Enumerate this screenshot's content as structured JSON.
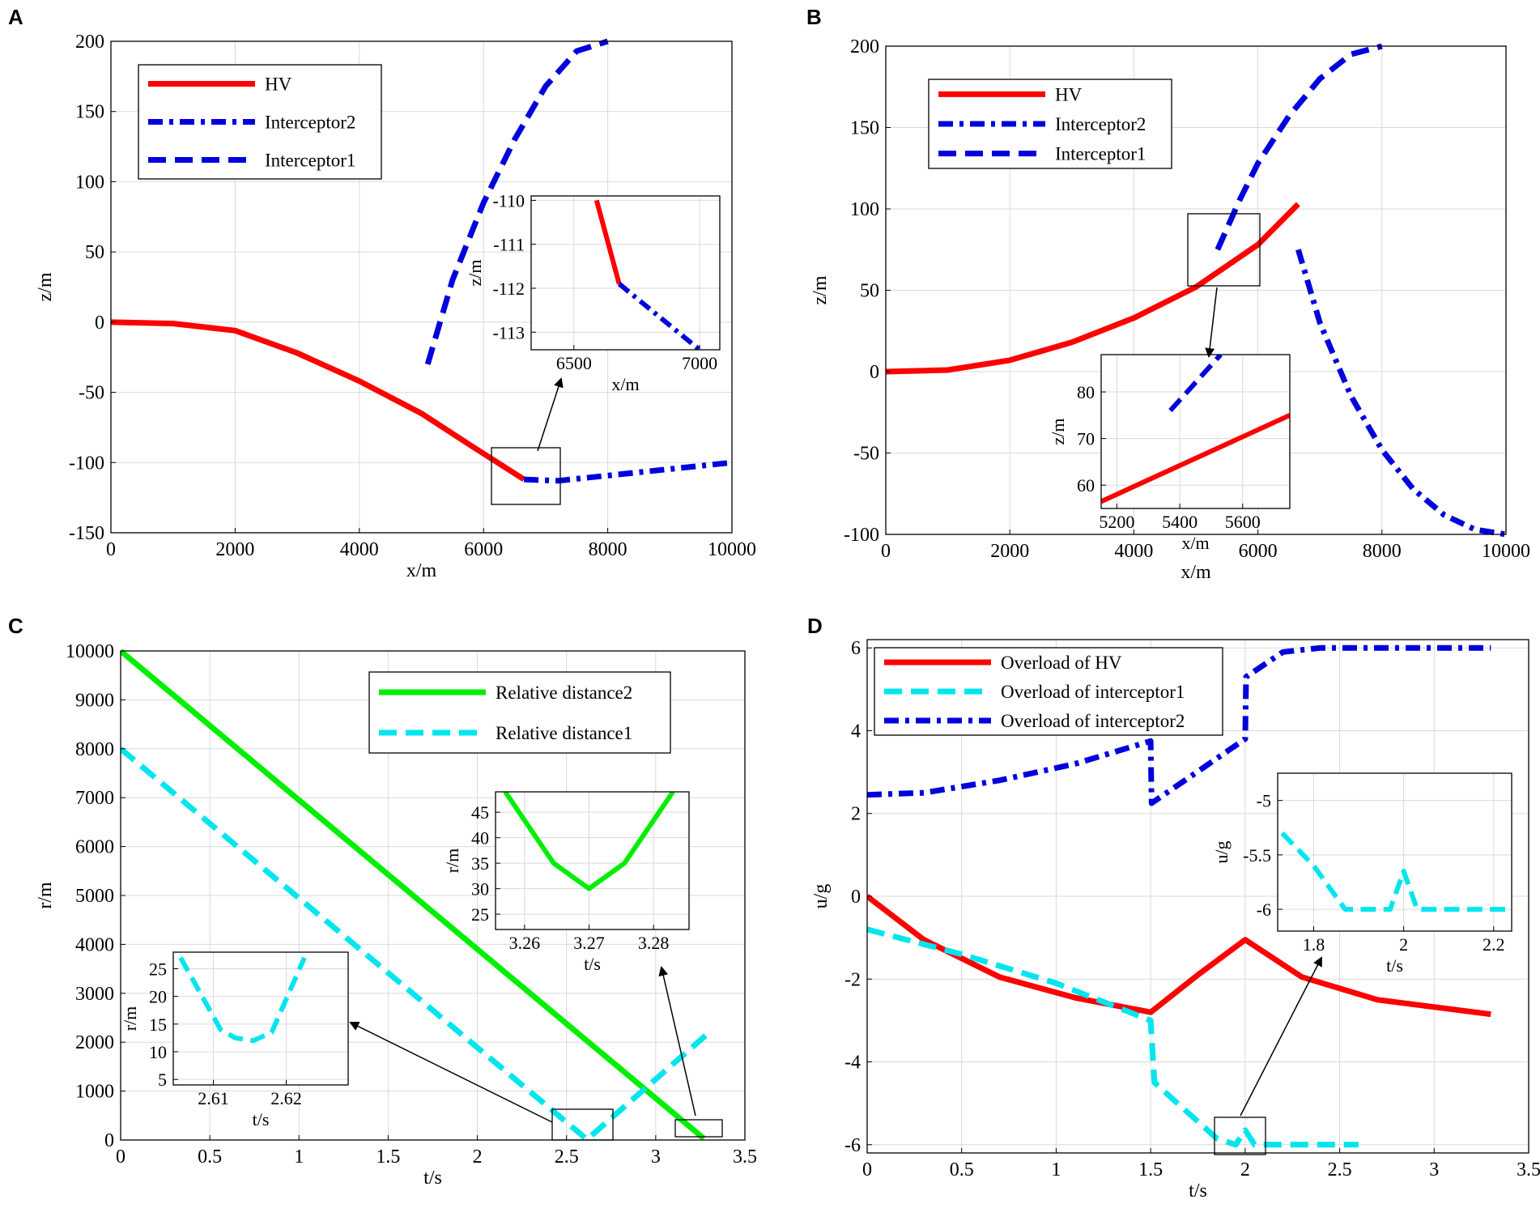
{
  "chart_data": [
    {
      "panel": "A",
      "type": "line",
      "xlabel": "x/m",
      "ylabel": "z/m",
      "xlim": [
        0,
        10000
      ],
      "ylim": [
        -150,
        200
      ],
      "xticks": [
        0,
        2000,
        4000,
        6000,
        8000,
        10000
      ],
      "yticks": [
        -150,
        -100,
        -50,
        0,
        50,
        100,
        150,
        200
      ],
      "legend": [
        "HV",
        "Interceptor2",
        "Interceptor1"
      ],
      "series": [
        {
          "name": "HV",
          "color": "#ff0000",
          "style": "solid",
          "x": [
            0,
            1000,
            2000,
            3000,
            4000,
            5000,
            5800,
            6650
          ],
          "y": [
            0,
            -1,
            -6,
            -22,
            -42,
            -65,
            -88,
            -112
          ]
        },
        {
          "name": "Interceptor2",
          "color": "#0000dd",
          "style": "dashdot",
          "x": [
            6650,
            7200,
            10000
          ],
          "y": [
            -112,
            -113,
            -100
          ]
        },
        {
          "name": "Interceptor1",
          "color": "#0000dd",
          "style": "dash",
          "x": [
            5100,
            5500,
            6000,
            6500,
            7000,
            7500,
            8000
          ],
          "y": [
            -30,
            30,
            85,
            130,
            168,
            193,
            200
          ]
        }
      ],
      "inset": {
        "xlabel": "x/m",
        "ylabel": "z/m",
        "xlim": [
          6330,
          7080
        ],
        "ylim": [
          -113.4,
          -109.9
        ],
        "xticks": [
          6500,
          7000
        ],
        "yticks": [
          -110,
          -111,
          -112,
          -113
        ],
        "series": [
          {
            "name": "HV",
            "color": "#ff0000",
            "style": "solid",
            "x": [
              6590,
              6680
            ],
            "y": [
              -110,
              -111.9
            ]
          },
          {
            "name": "Interceptor2",
            "color": "#0000dd",
            "style": "dashdot",
            "x": [
              6680,
              7000
            ],
            "y": [
              -111.9,
              -113.4
            ]
          }
        ]
      }
    },
    {
      "panel": "B",
      "type": "line",
      "xlabel": "x/m",
      "ylabel": "z/m",
      "xlim": [
        0,
        10000
      ],
      "ylim": [
        -100,
        200
      ],
      "xticks": [
        0,
        2000,
        4000,
        6000,
        8000,
        10000
      ],
      "yticks": [
        -100,
        -50,
        0,
        50,
        100,
        150,
        200
      ],
      "legend": [
        "HV",
        "Interceptor2",
        "Interceptor1"
      ],
      "series": [
        {
          "name": "HV",
          "color": "#ff0000",
          "style": "solid",
          "x": [
            0,
            1000,
            2000,
            3000,
            4000,
            5000,
            6000,
            6650
          ],
          "y": [
            0,
            1,
            7,
            18,
            33,
            52,
            78,
            103
          ]
        },
        {
          "name": "Interceptor2",
          "color": "#0000dd",
          "style": "dashdot",
          "x": [
            6650,
            7000,
            7500,
            8000,
            8500,
            9000,
            9500,
            10000
          ],
          "y": [
            75,
            30,
            -15,
            -48,
            -72,
            -88,
            -97,
            -100
          ]
        },
        {
          "name": "Interceptor1",
          "color": "#0000dd",
          "style": "dash",
          "x": [
            5350,
            5700,
            6000,
            6500,
            7000,
            7500,
            8000
          ],
          "y": [
            75,
            105,
            128,
            157,
            180,
            195,
            200
          ]
        }
      ],
      "inset": {
        "xlabel": "x/m",
        "ylabel": "z/m",
        "xlim": [
          5150,
          5750
        ],
        "ylim": [
          55,
          88
        ],
        "xticks": [
          5200,
          5400,
          5600
        ],
        "yticks": [
          60,
          70,
          80
        ],
        "series": [
          {
            "name": "HV",
            "color": "#ff0000",
            "style": "solid",
            "x": [
              5150,
              5750
            ],
            "y": [
              56.5,
              75
            ]
          },
          {
            "name": "Interceptor1",
            "color": "#0000dd",
            "style": "dash",
            "x": [
              5370,
              5530
            ],
            "y": [
              76,
              88
            ]
          }
        ]
      }
    },
    {
      "panel": "C",
      "type": "line",
      "xlabel": "t/s",
      "ylabel": "r/m",
      "xlim": [
        0,
        3.5
      ],
      "ylim": [
        0,
        10000
      ],
      "xticks": [
        0,
        0.5,
        1,
        1.5,
        2,
        2.5,
        3,
        3.5
      ],
      "yticks": [
        0,
        1000,
        2000,
        3000,
        4000,
        5000,
        6000,
        7000,
        8000,
        9000,
        10000
      ],
      "legend": [
        "Relative distance2",
        "Relative distance1"
      ],
      "series": [
        {
          "name": "Relative distance2",
          "color": "#00ee00",
          "style": "solid",
          "x": [
            0,
            3.27
          ],
          "y": [
            10000,
            30
          ]
        },
        {
          "name": "Relative distance1",
          "color": "#00e5ee",
          "style": "dash",
          "x": [
            0,
            2.615,
            3.3
          ],
          "y": [
            8000,
            12,
            2200
          ]
        }
      ],
      "insets": [
        {
          "xlabel": "t/s",
          "ylabel": "r/m",
          "xlim": [
            2.6045,
            2.6285
          ],
          "ylim": [
            4,
            28
          ],
          "xticks": [
            2.61,
            2.62
          ],
          "yticks": [
            5,
            10,
            15,
            20,
            25
          ],
          "series": [
            {
              "name": "Relative distance1",
              "color": "#00e5ee",
              "style": "dash",
              "x": [
                2.6055,
                2.611,
                2.613,
                2.6155,
                2.618,
                2.6225
              ],
              "y": [
                27,
                14,
                12.5,
                12,
                13.5,
                27
              ]
            }
          ]
        },
        {
          "xlabel": "t/s",
          "ylabel": "r/m",
          "xlim": [
            3.2555,
            3.2855
          ],
          "ylim": [
            22,
            49
          ],
          "xticks": [
            3.26,
            3.27,
            3.28
          ],
          "yticks": [
            25,
            30,
            35,
            40,
            45
          ],
          "series": [
            {
              "name": "Relative distance2",
              "color": "#00ee00",
              "style": "solid",
              "x": [
                3.257,
                3.2645,
                3.27,
                3.2755,
                3.283
              ],
              "y": [
                49,
                35,
                30,
                35,
                49
              ]
            }
          ]
        }
      ]
    },
    {
      "panel": "D",
      "type": "line",
      "xlabel": "t/s",
      "ylabel": "u/g",
      "xlim": [
        0,
        3.5
      ],
      "ylim": [
        -6.2,
        6.2
      ],
      "xticks": [
        0,
        0.5,
        1,
        1.5,
        2,
        2.5,
        3,
        3.5
      ],
      "yticks": [
        -6,
        -4,
        -2,
        0,
        2,
        4,
        6
      ],
      "legend": [
        "Overload of HV",
        "Overload of interceptor1",
        "Overload of interceptor2"
      ],
      "series": [
        {
          "name": "Overload of HV",
          "color": "#ff0000",
          "style": "solid",
          "x": [
            0,
            0.3,
            0.7,
            1.1,
            1.5,
            1.75,
            2.0,
            2.3,
            2.7,
            3.3
          ],
          "y": [
            0,
            -1.05,
            -1.95,
            -2.45,
            -2.8,
            -1.9,
            -1.05,
            -1.95,
            -2.5,
            -2.85
          ]
        },
        {
          "name": "Overload of interceptor1",
          "color": "#00e5ee",
          "style": "dash",
          "x": [
            0,
            0.5,
            1.0,
            1.5,
            1.52,
            1.85,
            1.95,
            2.0,
            2.05,
            2.6
          ],
          "y": [
            -0.8,
            -1.4,
            -2.1,
            -3.0,
            -4.5,
            -5.85,
            -6.0,
            -5.65,
            -6.0,
            -6.0
          ]
        },
        {
          "name": "Overload of interceptor2",
          "color": "#0000dd",
          "style": "dashdot",
          "x": [
            0,
            0.3,
            0.7,
            1.1,
            1.5,
            1.505,
            2.0,
            2.005,
            2.2,
            2.4,
            3.3
          ],
          "y": [
            2.45,
            2.5,
            2.8,
            3.2,
            3.75,
            2.25,
            3.8,
            5.3,
            5.9,
            6.0,
            6.0
          ]
        }
      ],
      "inset": {
        "xlabel": "t/s",
        "ylabel": "u/g",
        "xlim": [
          1.72,
          2.24
        ],
        "ylim": [
          -6.2,
          -4.75
        ],
        "xticks": [
          1.8,
          2,
          2.2
        ],
        "yticks": [
          -5,
          -5.5,
          -6
        ],
        "series": [
          {
            "name": "Overload of interceptor1",
            "color": "#00e5ee",
            "style": "dash",
            "x": [
              1.73,
              1.8,
              1.87,
              1.93,
              1.97,
              2.0,
              2.03,
              2.1,
              2.24
            ],
            "y": [
              -5.3,
              -5.6,
              -6.0,
              -6.0,
              -6.0,
              -5.65,
              -6.0,
              -6.0,
              -6.0
            ]
          }
        ]
      }
    }
  ]
}
